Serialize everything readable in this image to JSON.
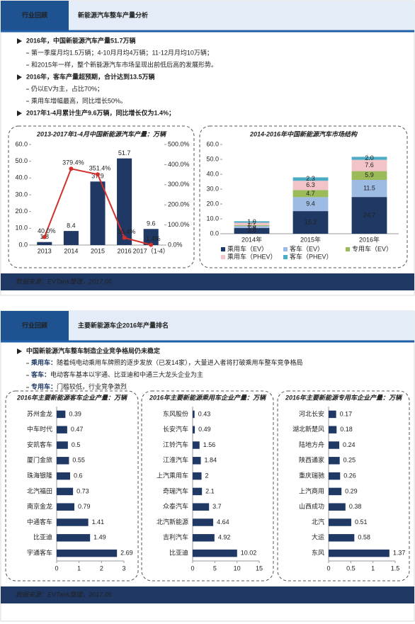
{
  "slides": [
    {
      "tag": "行业回顾",
      "title": "新能源汽车整车产量分析",
      "bullets": [
        {
          "text": "2016年，中国新能源汽车产量51.7万辆",
          "sub": [
            "第一季度月均1.5万辆；4-10月月均4万辆；11-12月月均10万辆；",
            "和2015年一样，整个新能源汽车市场呈现出前低后高的发展形势。"
          ]
        },
        {
          "text": "2016年，客车产量超预期，合计达到13.5万辆",
          "sub": [
            "仍以EV为主，占比70%；",
            "乘用车增幅最高，同比增长50%。"
          ]
        },
        {
          "text": "2017年1-4月累计生产9.6万辆，同比增长仅为1.4%；",
          "sub": []
        }
      ],
      "charts": [
        {
          "type": "combo",
          "title": "2013-2017年1-4月中国新能源汽车产量：万辆",
          "categories": [
            "2013",
            "2014",
            "2015",
            "2016",
            "2017（1-4）"
          ],
          "bars": {
            "values": [
              1.8,
              8.4,
              37.9,
              51.7,
              9.6
            ],
            "color": "#1f3864"
          },
          "line": {
            "values": [
              40.0,
              379.4,
              351.4,
              36.4,
              1.4
            ],
            "value_labels": [
              "40.0%",
              "379.4%",
              "351.4%",
              "36.4%",
              "1.4%"
            ],
            "color": "#d0312d",
            "axis": "y2"
          },
          "ylim": [
            0,
            60
          ],
          "yticks": [
            {
              "value": 0,
              "label": "0.0"
            },
            {
              "value": 10,
              "label": "10.0"
            },
            {
              "value": 20,
              "label": "20.0"
            },
            {
              "value": 30,
              "label": "30.0"
            },
            {
              "value": 40,
              "label": "40.0"
            },
            {
              "value": 50,
              "label": "50.0"
            },
            {
              "value": 60,
              "label": "60.0"
            }
          ],
          "y2lim": [
            0,
            500
          ],
          "y2ticks": [
            {
              "value": 0,
              "label": "0.0%"
            },
            {
              "value": 100,
              "label": "100.0%"
            },
            {
              "value": 200,
              "label": "200.0%"
            },
            {
              "value": 300,
              "label": "300.0%"
            },
            {
              "value": 400,
              "label": "400.0%"
            },
            {
              "value": 500,
              "label": "500.0%"
            }
          ]
        },
        {
          "type": "stacked_bar",
          "title": "2014-2016年中国新能源汽车市场结构",
          "categories": [
            "2014年",
            "2015年",
            "2016年"
          ],
          "series": [
            {
              "name": "乘用车（EV）",
              "color": "#1f3864",
              "values": [
                3.8,
                15.2,
                24.7
              ],
              "value_labels": [
                "3.8",
                "15.2",
                "24.7"
              ]
            },
            {
              "name": "客车（EV）",
              "color": "#9dbbe3",
              "values": [
                1.4,
                9.4,
                11.5
              ],
              "value_labels": [
                "1.4",
                "9.4",
                "11.5"
              ]
            },
            {
              "name": "专用车（EV）",
              "color": "#9bbb59",
              "values": [
                0.5,
                4.7,
                5.9
              ],
              "value_labels": [
                "0.5",
                "4.7",
                "5.9"
              ]
            },
            {
              "name": "乘用车（PHEV）",
              "color": "#f2c4c8",
              "values": [
                1.7,
                6.3,
                7.6
              ],
              "value_labels": [
                "1.7",
                "6.3",
                "7.6"
              ]
            },
            {
              "name": "客车（PHEV）",
              "color": "#4bacc6",
              "values": [
                1.0,
                2.3,
                2.0
              ],
              "value_labels": [
                "1.0",
                "2.3",
                "2.0"
              ]
            }
          ],
          "ylim": [
            0,
            60
          ],
          "yticks": [
            {
              "value": 0,
              "label": "0.0"
            },
            {
              "value": 10,
              "label": "10.0"
            },
            {
              "value": 20,
              "label": "20.0"
            },
            {
              "value": 30,
              "label": "30.0"
            },
            {
              "value": 40,
              "label": "40.0"
            },
            {
              "value": 50,
              "label": "50.0"
            },
            {
              "value": 60,
              "label": "60.0"
            }
          ],
          "legend": "bottom"
        }
      ],
      "source": "数据来源：EVTank整理，2017,05"
    },
    {
      "tag": "行业回顾",
      "title": "主要新能源车企2016年产量排名",
      "bullets": [
        {
          "text": "中国新能源汽车整车制造企业竞争格局仍未稳定",
          "sub": [
            {
              "label": "乘用车：",
              "text": "随着纯电动乘用车牌照的逐步发放（已发14家），大量进入者将打破乘用车整车竞争格局"
            },
            {
              "label": "客车：",
              "text": "电动客车基本以宇通、比亚迪和中通三大龙头企业为主"
            },
            {
              "label": "专用车：",
              "text": "门槛较低，行业竞争激烈"
            }
          ]
        }
      ],
      "charts": [
        {
          "type": "hbar",
          "title": "2016年主要新能源客车企业产量：万辆",
          "color": "#1f3864",
          "categories": [
            "苏州金龙",
            "中车时代",
            "安凯客车",
            "厦门金旅",
            "珠海银隆",
            "北汽福田",
            "南京金龙",
            "中通客车",
            "比亚迪",
            "宇通客车"
          ],
          "values": [
            0.39,
            0.47,
            0.5,
            0.55,
            0.6,
            0.73,
            0.79,
            1.41,
            1.49,
            2.69
          ],
          "xlim": [
            0,
            3
          ],
          "xticks": [
            0,
            1,
            2,
            3
          ]
        },
        {
          "type": "hbar",
          "title": "2016年主要新能源乘用车企业产量：万辆",
          "color": "#1f3864",
          "categories": [
            "东风股份",
            "长安汽车",
            "江铃汽车",
            "江淮汽车",
            "上汽乘用车",
            "奇瑞汽车",
            "众泰汽车",
            "北汽新能源",
            "吉利汽车",
            "比亚迪"
          ],
          "values": [
            0.43,
            0.49,
            1.56,
            1.84,
            2,
            2.1,
            3.7,
            4.64,
            4.92,
            10.02
          ],
          "xlim": [
            0,
            15
          ],
          "xticks": [
            0,
            5,
            10,
            15
          ]
        },
        {
          "type": "hbar",
          "title": "2016年主要新能源专用车企业产量：万辆",
          "color": "#1f3864",
          "categories": [
            "河北长安",
            "湖北新楚风",
            "陆地方舟",
            "陕西通家",
            "重庆瑞驰",
            "上汽商用",
            "山西成功",
            "北汽",
            "大运",
            "东风"
          ],
          "values": [
            0.17,
            0.18,
            0.24,
            0.25,
            0.26,
            0.29,
            0.38,
            0.51,
            0.58,
            1.37
          ],
          "xlim": [
            0,
            1.5
          ],
          "xticks": [
            0,
            0.5,
            1,
            1.5
          ]
        }
      ],
      "source": "数据来源：EVTank整理，2017,05"
    }
  ]
}
